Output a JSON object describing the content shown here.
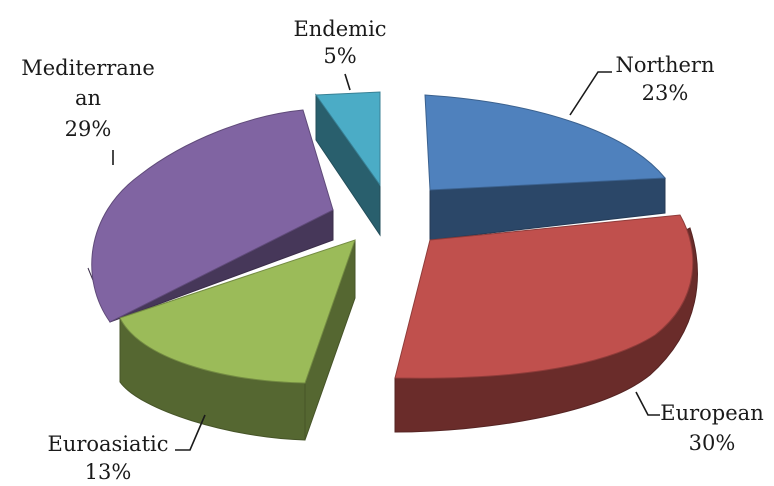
{
  "chart_data": {
    "type": "pie",
    "style": "3d-exploded",
    "slices": [
      {
        "name": "Northern",
        "value": 23,
        "label": "23%",
        "color": "#4f81bd"
      },
      {
        "name": "European",
        "value": 30,
        "label": "30%",
        "color": "#c0504d"
      },
      {
        "name": "Euroasiatic",
        "value": 13,
        "label": "13%",
        "color": "#9bbb59"
      },
      {
        "name": "Mediterrane an",
        "value": 29,
        "label": "29%",
        "color": "#8064a2"
      },
      {
        "name": "Endemic",
        "value": 5,
        "label": "5%",
        "color": "#4bacc6"
      }
    ],
    "legend": "none"
  }
}
